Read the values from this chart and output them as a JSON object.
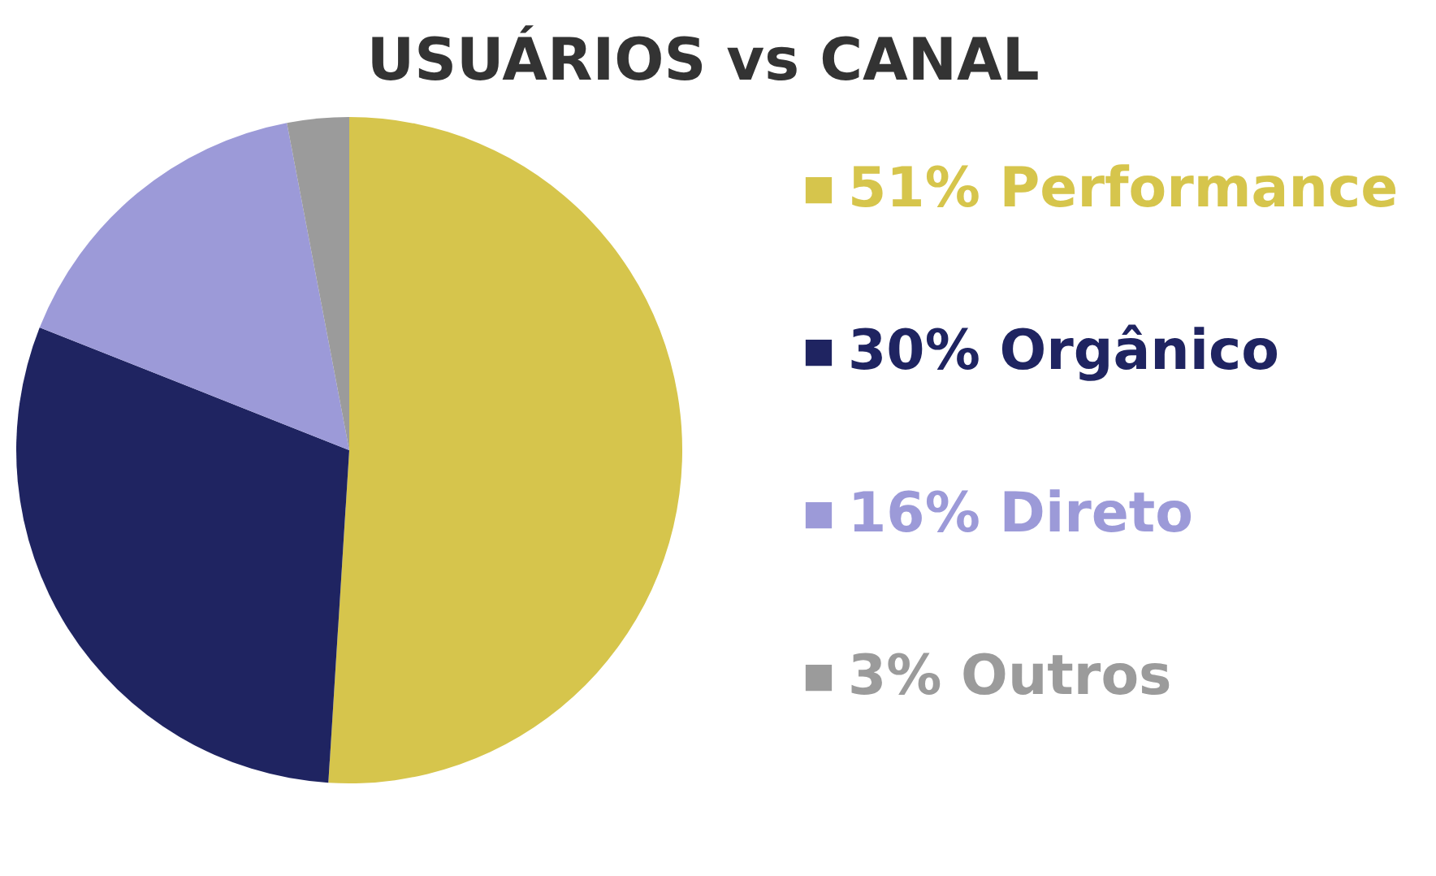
{
  "chart_data": {
    "type": "pie",
    "title": "USUÁRIOS vs CANAL",
    "categories": [
      "51% Performance",
      "30% Orgânico",
      "16% Direto",
      "3% Outros"
    ],
    "values": [
      51,
      30,
      16,
      3
    ],
    "colors": [
      "#d6c54c",
      "#1f2461",
      "#9c9ad8",
      "#9b9b9b"
    ],
    "legend": "right"
  }
}
